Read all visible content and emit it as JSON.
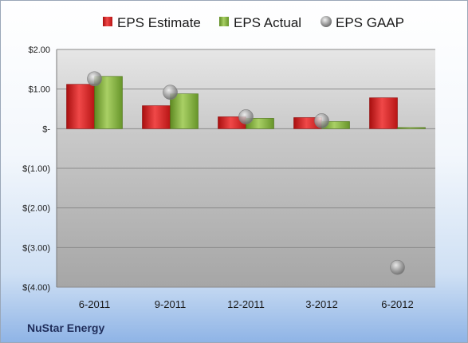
{
  "chart_data": {
    "type": "bar",
    "categories": [
      "6-2011",
      "9-2011",
      "12-2011",
      "3-2012",
      "6-2012"
    ],
    "series": [
      {
        "name": "EPS Estimate",
        "kind": "bar",
        "color": "#d42424",
        "values": [
          1.12,
          0.58,
          0.3,
          0.28,
          0.78
        ]
      },
      {
        "name": "EPS Actual",
        "kind": "bar",
        "color": "#7fae3c",
        "values": [
          1.32,
          0.88,
          0.26,
          0.18,
          0.03
        ]
      },
      {
        "name": "EPS GAAP",
        "kind": "marker",
        "color": "#a8a8a8",
        "values": [
          1.26,
          0.92,
          0.3,
          0.2,
          -3.5
        ]
      }
    ],
    "ylim": [
      -4,
      2
    ],
    "yticks": [
      2,
      1,
      0,
      -1,
      -2,
      -3,
      -4
    ],
    "ytick_labels": [
      "$2.00",
      "$1.00",
      "$-",
      "$(1.00)",
      "$(2.00)",
      "$(3.00)",
      "$(4.00)"
    ],
    "grid": true,
    "legend_position": "top"
  },
  "footer": {
    "company": "NuStar Energy"
  }
}
